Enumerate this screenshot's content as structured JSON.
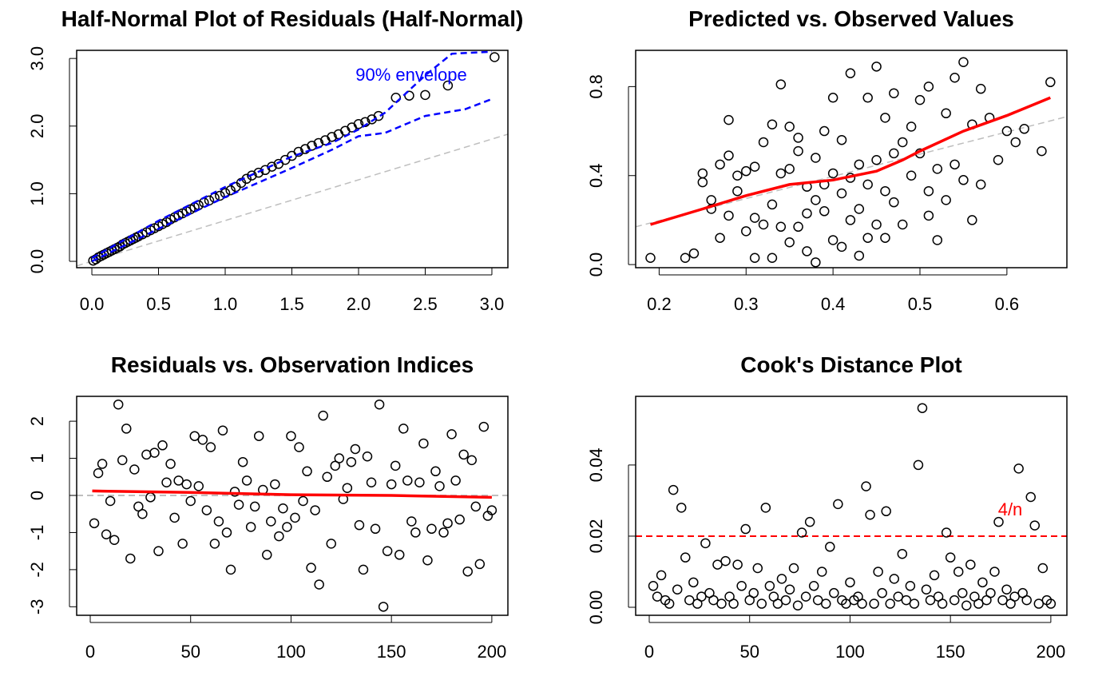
{
  "chart_data": [
    {
      "type": "scatter",
      "title": "Half-Normal Plot of Residuals (Half-Normal)",
      "annotation": "90% envelope",
      "annotation_color": "#0000ff",
      "xlim": [
        -0.114,
        3.12
      ],
      "ylim": [
        -0.094,
        3.12
      ],
      "xticks": [
        {
          "value": 0,
          "label": "0.0"
        },
        0.5,
        {
          "value": 1,
          "label": "1.0"
        },
        1.5,
        {
          "value": 2,
          "label": "2.0"
        },
        2.5,
        {
          "value": 3,
          "label": "3.0"
        }
      ],
      "yticks": [
        {
          "value": 0,
          "label": "0.0"
        },
        {
          "value": 1,
          "label": "1.0"
        },
        {
          "value": 2,
          "label": "2.0"
        },
        {
          "value": 3,
          "label": "3.0"
        }
      ],
      "series": [
        {
          "style": "dashed",
          "color": "#bebebe",
          "x": [
            -0.114,
            3.12
          ],
          "values": [
            -0.068,
            1.88
          ]
        },
        {
          "style": "points",
          "color": "#000000",
          "x": [
            0.01,
            0.03,
            0.05,
            0.07,
            0.09,
            0.11,
            0.13,
            0.15,
            0.17,
            0.19,
            0.21,
            0.23,
            0.25,
            0.27,
            0.29,
            0.31,
            0.33,
            0.35,
            0.38,
            0.41,
            0.44,
            0.47,
            0.5,
            0.53,
            0.56,
            0.59,
            0.62,
            0.65,
            0.68,
            0.71,
            0.74,
            0.77,
            0.8,
            0.84,
            0.88,
            0.92,
            0.96,
            1.0,
            1.04,
            1.08,
            1.12,
            1.16,
            1.2,
            1.25,
            1.3,
            1.35,
            1.4,
            1.45,
            1.5,
            1.55,
            1.6,
            1.65,
            1.7,
            1.75,
            1.8,
            1.85,
            1.9,
            1.95,
            2.0,
            2.05,
            2.1,
            2.15,
            2.28,
            2.38,
            2.5,
            2.67,
            3.02
          ],
          "values": [
            0.01,
            0.03,
            0.06,
            0.08,
            0.1,
            0.12,
            0.14,
            0.16,
            0.18,
            0.2,
            0.22,
            0.25,
            0.27,
            0.29,
            0.31,
            0.33,
            0.35,
            0.37,
            0.4,
            0.43,
            0.46,
            0.49,
            0.52,
            0.55,
            0.58,
            0.62,
            0.65,
            0.68,
            0.71,
            0.74,
            0.77,
            0.8,
            0.83,
            0.87,
            0.9,
            0.94,
            0.97,
            1.01,
            1.05,
            1.1,
            1.16,
            1.22,
            1.27,
            1.31,
            1.35,
            1.4,
            1.44,
            1.5,
            1.56,
            1.62,
            1.66,
            1.71,
            1.75,
            1.79,
            1.84,
            1.88,
            1.93,
            1.98,
            2.03,
            2.06,
            2.1,
            2.15,
            2.42,
            2.45,
            2.46,
            2.6,
            3.02
          ]
        },
        {
          "style": "dashed",
          "color": "#0000ff",
          "x": [
            0,
            0.5,
            1,
            1.5,
            1.8,
            2,
            2.2,
            2.5,
            2.8,
            3
          ],
          "values": [
            0,
            0.48,
            0.95,
            1.38,
            1.65,
            1.85,
            1.9,
            2.15,
            2.25,
            2.4
          ]
        },
        {
          "style": "dashed",
          "color": "#0000ff",
          "x": [
            0,
            0.5,
            1,
            1.5,
            1.8,
            2,
            2.2,
            2.5,
            2.7,
            3
          ],
          "values": [
            0.05,
            0.6,
            1.1,
            1.55,
            1.75,
            1.95,
            2.2,
            2.75,
            3.07,
            3.1
          ]
        }
      ]
    },
    {
      "type": "scatter",
      "title": "Predicted vs. Observed Values",
      "xlim": [
        0.173,
        0.669
      ],
      "ylim": [
        -0.014,
        0.963
      ],
      "xticks": [
        0.2,
        0.3,
        0.4,
        0.5,
        0.6
      ],
      "yticks": [
        {
          "value": 0,
          "label": "0.0"
        },
        0.4,
        0.8
      ],
      "series": [
        {
          "style": "dashed",
          "color": "#bebebe",
          "x": [
            0.173,
            0.669
          ],
          "values": [
            0.17,
            0.665
          ]
        },
        {
          "style": "points",
          "color": "#000000",
          "x": [
            0.19,
            0.23,
            0.24,
            0.25,
            0.25,
            0.26,
            0.26,
            0.27,
            0.27,
            0.28,
            0.28,
            0.28,
            0.29,
            0.29,
            0.3,
            0.3,
            0.31,
            0.31,
            0.31,
            0.32,
            0.32,
            0.33,
            0.33,
            0.33,
            0.34,
            0.34,
            0.34,
            0.35,
            0.35,
            0.35,
            0.36,
            0.36,
            0.36,
            0.37,
            0.37,
            0.37,
            0.38,
            0.38,
            0.38,
            0.39,
            0.39,
            0.39,
            0.4,
            0.4,
            0.4,
            0.41,
            0.41,
            0.41,
            0.42,
            0.42,
            0.42,
            0.43,
            0.43,
            0.43,
            0.44,
            0.44,
            0.44,
            0.45,
            0.45,
            0.45,
            0.46,
            0.46,
            0.46,
            0.47,
            0.47,
            0.47,
            0.48,
            0.48,
            0.49,
            0.49,
            0.5,
            0.5,
            0.51,
            0.51,
            0.51,
            0.52,
            0.52,
            0.53,
            0.53,
            0.54,
            0.54,
            0.55,
            0.55,
            0.56,
            0.56,
            0.57,
            0.57,
            0.58,
            0.59,
            0.6,
            0.61,
            0.62,
            0.64,
            0.65
          ],
          "values": [
            0.03,
            0.03,
            0.05,
            0.37,
            0.41,
            0.25,
            0.29,
            0.12,
            0.45,
            0.22,
            0.49,
            0.65,
            0.33,
            0.4,
            0.15,
            0.42,
            0.03,
            0.21,
            0.44,
            0.18,
            0.55,
            0.03,
            0.27,
            0.63,
            0.17,
            0.41,
            0.81,
            0.1,
            0.43,
            0.62,
            0.17,
            0.51,
            0.57,
            0.06,
            0.23,
            0.35,
            0.01,
            0.29,
            0.48,
            0.24,
            0.36,
            0.6,
            0.11,
            0.41,
            0.75,
            0.08,
            0.32,
            0.56,
            0.2,
            0.39,
            0.86,
            0.04,
            0.25,
            0.45,
            0.12,
            0.36,
            0.75,
            0.18,
            0.47,
            0.89,
            0.12,
            0.33,
            0.66,
            0.28,
            0.5,
            0.77,
            0.18,
            0.55,
            0.4,
            0.62,
            0.5,
            0.74,
            0.22,
            0.33,
            0.8,
            0.11,
            0.43,
            0.29,
            0.68,
            0.45,
            0.84,
            0.38,
            0.91,
            0.2,
            0.63,
            0.36,
            0.79,
            0.66,
            0.47,
            0.6,
            0.55,
            0.61,
            0.51,
            0.82
          ]
        },
        {
          "style": "line",
          "color": "#ff0000",
          "x": [
            0.19,
            0.25,
            0.3,
            0.35,
            0.4,
            0.45,
            0.48,
            0.5,
            0.55,
            0.6,
            0.65
          ],
          "values": [
            0.18,
            0.25,
            0.31,
            0.36,
            0.38,
            0.42,
            0.47,
            0.51,
            0.6,
            0.67,
            0.75
          ]
        }
      ]
    },
    {
      "type": "scatter",
      "title": "Residuals vs. Observation Indices",
      "xlim": [
        -6.76,
        208
      ],
      "ylim": [
        -3.23,
        2.67
      ],
      "xticks": [
        0,
        50,
        100,
        150,
        200
      ],
      "yticks": [
        -3,
        -2,
        -1,
        0,
        1,
        2
      ],
      "hline": 0,
      "hline_color": "#bebebe",
      "series": [
        {
          "style": "points",
          "color": "#000000",
          "x": [
            2,
            4,
            6,
            8,
            10,
            12,
            14,
            16,
            18,
            20,
            22,
            24,
            26,
            28,
            30,
            32,
            34,
            36,
            38,
            40,
            42,
            44,
            46,
            48,
            50,
            52,
            54,
            56,
            58,
            60,
            62,
            64,
            66,
            68,
            70,
            72,
            74,
            76,
            78,
            80,
            82,
            84,
            86,
            88,
            90,
            92,
            94,
            96,
            98,
            100,
            102,
            104,
            106,
            108,
            110,
            112,
            114,
            116,
            118,
            120,
            122,
            124,
            126,
            128,
            130,
            132,
            134,
            136,
            138,
            140,
            142,
            144,
            146,
            148,
            150,
            152,
            154,
            156,
            158,
            160,
            162,
            164,
            166,
            168,
            170,
            172,
            174,
            176,
            178,
            180,
            182,
            184,
            186,
            188,
            190,
            192,
            194,
            196,
            198,
            200
          ],
          "values": [
            -0.75,
            0.6,
            0.85,
            -1.05,
            -0.15,
            -1.2,
            2.45,
            0.95,
            1.8,
            -1.7,
            0.7,
            -0.3,
            -0.5,
            1.1,
            -0.05,
            1.15,
            -1.5,
            1.35,
            0.35,
            0.85,
            -0.6,
            0.4,
            -1.3,
            0.3,
            -0.15,
            1.6,
            0.25,
            1.5,
            -0.4,
            1.3,
            -1.3,
            -0.7,
            1.75,
            -1.0,
            -2.0,
            0.1,
            -0.25,
            0.9,
            0.4,
            -0.85,
            -0.3,
            1.6,
            0.15,
            -1.6,
            -0.7,
            0.3,
            -1.1,
            -0.35,
            -0.85,
            1.6,
            -0.6,
            1.3,
            -0.15,
            0.65,
            -1.95,
            -0.4,
            -2.4,
            2.15,
            0.5,
            -1.3,
            0.8,
            1.0,
            -0.1,
            0.2,
            0.9,
            1.25,
            -0.8,
            -2.0,
            1.05,
            0.35,
            -0.9,
            2.45,
            -3.0,
            -1.5,
            0.3,
            0.8,
            -1.6,
            1.8,
            0.4,
            -0.7,
            -1.0,
            0.35,
            1.4,
            -1.75,
            -0.9,
            0.65,
            0.25,
            -1.0,
            -0.75,
            1.65,
            0.4,
            -0.65,
            1.1,
            -2.05,
            0.95,
            -0.3,
            -1.85,
            1.85,
            -0.55,
            -0.4
          ]
        },
        {
          "style": "line",
          "color": "#ff0000",
          "x": [
            1,
            50,
            100,
            150,
            200
          ],
          "values": [
            0.12,
            0.08,
            0.02,
            0.0,
            -0.05
          ]
        }
      ]
    },
    {
      "type": "scatter",
      "title": "Cook's Distance Plot",
      "annotation": "4/n",
      "annotation_color": "#ff0000",
      "xlim": [
        -6.76,
        208
      ],
      "ylim": [
        -0.00225,
        0.0593
      ],
      "xticks": [
        0,
        50,
        100,
        150,
        200
      ],
      "yticks": [
        {
          "value": 0,
          "label": "0.00"
        },
        0.02,
        0.04
      ],
      "hline": 0.02,
      "hline_color": "#ff0000",
      "series": [
        {
          "style": "points",
          "color": "#000000",
          "x": [
            2,
            4,
            6,
            8,
            10,
            12,
            14,
            16,
            18,
            20,
            22,
            24,
            26,
            28,
            30,
            32,
            34,
            36,
            38,
            40,
            42,
            44,
            46,
            48,
            50,
            52,
            54,
            56,
            58,
            60,
            62,
            64,
            66,
            68,
            70,
            72,
            74,
            76,
            78,
            80,
            82,
            84,
            86,
            88,
            90,
            92,
            94,
            96,
            98,
            100,
            102,
            104,
            106,
            108,
            110,
            112,
            114,
            116,
            118,
            120,
            122,
            124,
            126,
            128,
            130,
            132,
            134,
            136,
            138,
            140,
            142,
            144,
            146,
            148,
            150,
            152,
            154,
            156,
            158,
            160,
            162,
            164,
            166,
            168,
            170,
            172,
            174,
            176,
            178,
            180,
            182,
            184,
            186,
            188,
            190,
            192,
            194,
            196,
            198,
            200
          ],
          "values": [
            0.006,
            0.003,
            0.009,
            0.002,
            0.001,
            0.033,
            0.005,
            0.028,
            0.014,
            0.002,
            0.007,
            0.001,
            0.003,
            0.018,
            0.004,
            0.002,
            0.012,
            0.001,
            0.013,
            0.003,
            0.001,
            0.012,
            0.006,
            0.022,
            0.002,
            0.004,
            0.011,
            0.001,
            0.028,
            0.006,
            0.003,
            0.001,
            0.008,
            0.002,
            0.005,
            0.011,
            0.0005,
            0.021,
            0.003,
            0.024,
            0.006,
            0.002,
            0.01,
            0.001,
            0.017,
            0.004,
            0.029,
            0.002,
            0.001,
            0.007,
            0.002,
            0.003,
            0.001,
            0.034,
            0.026,
            0.001,
            0.01,
            0.004,
            0.027,
            0.001,
            0.008,
            0.003,
            0.015,
            0.002,
            0.006,
            0.001,
            0.04,
            0.056,
            0.005,
            0.002,
            0.009,
            0.003,
            0.001,
            0.021,
            0.014,
            0.002,
            0.01,
            0.004,
            0.0005,
            0.012,
            0.003,
            0.001,
            0.007,
            0.002,
            0.004,
            0.01,
            0.024,
            0.002,
            0.005,
            0.001,
            0.003,
            0.039,
            0.004,
            0.002,
            0.031,
            0.023,
            0.001,
            0.011,
            0.002,
            0.001
          ]
        }
      ]
    }
  ]
}
